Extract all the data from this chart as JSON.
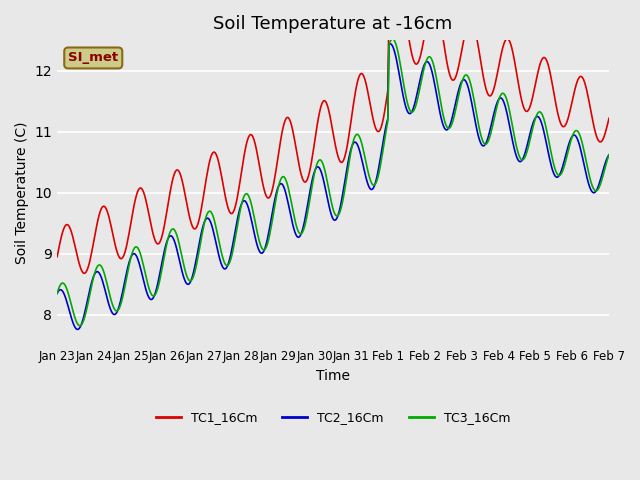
{
  "title": "Soil Temperature at -16cm",
  "xlabel": "Time",
  "ylabel": "Soil Temperature (C)",
  "ylim": [
    7.5,
    12.5
  ],
  "background_color": "#e8e8e8",
  "plot_bg_color": "#e8e8e8",
  "grid_color": "white",
  "annotation_text": "SI_met",
  "annotation_bg": "#cccc88",
  "annotation_border": "#8b6914",
  "annotation_text_color": "#8b0000",
  "tick_labels": [
    "Jan 23",
    "Jan 24",
    "Jan 25",
    "Jan 26",
    "Jan 27",
    "Jan 28",
    "Jan 29",
    "Jan 30",
    "Jan 31",
    "Feb 1",
    "Feb 2",
    "Feb 3",
    "Feb 4",
    "Feb 5",
    "Feb 6",
    "Feb 7"
  ],
  "line_colors": {
    "TC1": "#dd0000",
    "TC2": "#0000cc",
    "TC3": "#00aa00"
  },
  "legend_labels": [
    "TC1_16Cm",
    "TC2_16Cm",
    "TC3_16Cm"
  ],
  "title_fontsize": 13,
  "axis_label_fontsize": 10,
  "tick_fontsize": 8.5
}
